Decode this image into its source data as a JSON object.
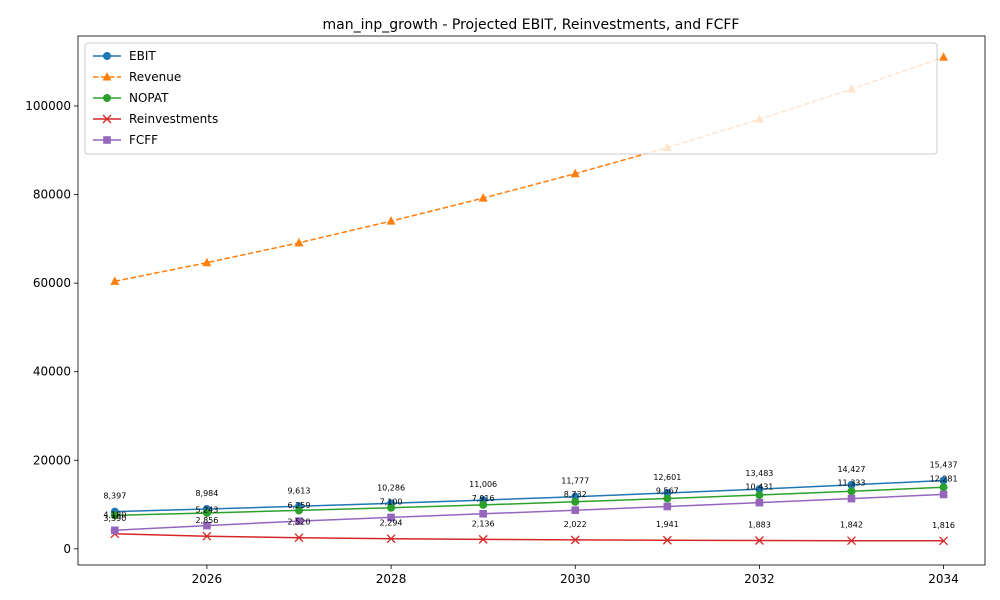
{
  "chart_data": {
    "type": "line",
    "title": "man_inp_growth - Projected EBIT, Reinvestments, and FCFF",
    "xlabel": "",
    "ylabel": "",
    "x": [
      2025,
      2026,
      2027,
      2028,
      2029,
      2030,
      2031,
      2032,
      2033,
      2034
    ],
    "xticks": [
      2026,
      2028,
      2030,
      2032,
      2034
    ],
    "xlim": [
      2024.6,
      2034.45
    ],
    "yticks": [
      0,
      20000,
      40000,
      60000,
      80000,
      100000
    ],
    "ylim": [
      -3650,
      115800
    ],
    "grid": false,
    "legend": "upper left",
    "series": [
      {
        "name": "EBIT",
        "color": "#1f77b4",
        "marker": "circle",
        "dashed": false,
        "label_points": true,
        "values": [
          8397,
          8984,
          9613,
          10286,
          11006,
          11777,
          12601,
          13483,
          14427,
          15437
        ],
        "labels": [
          "8,397",
          "8,984",
          "9,613",
          "10,286",
          "11,006",
          "11,777",
          "12,601",
          "13,483",
          "14,427",
          "15,437"
        ]
      },
      {
        "name": "Revenue",
        "color": "#ff7f0e",
        "marker": "triangle",
        "dashed": true,
        "label_points": false,
        "values": [
          60400,
          64600,
          69100,
          74000,
          79200,
          84700,
          90600,
          97000,
          103800,
          111000
        ],
        "labels": []
      },
      {
        "name": "NOPAT",
        "color": "#2ca02c",
        "marker": "circle",
        "dashed": false,
        "label_points": false,
        "values": [
          7570,
          8100,
          8670,
          9270,
          9920,
          10620,
          11360,
          12150,
          13000,
          13910
        ],
        "labels": []
      },
      {
        "name": "Reinvestments",
        "color": "#d62728",
        "marker": "x",
        "dashed": false,
        "label_points": true,
        "values": [
          3390,
          2856,
          2520,
          2294,
          2136,
          2022,
          1941,
          1883,
          1842,
          1816
        ],
        "labels": [
          "3,390",
          "2,856",
          "2,520",
          "2,294",
          "2,136",
          "2,022",
          "1,941",
          "1,883",
          "1,842",
          "1,816"
        ]
      },
      {
        "name": "FCFF",
        "color": "#9467bd",
        "marker": "square",
        "dashed": false,
        "label_points": true,
        "values": [
          4180,
          5243,
          6259,
          7100,
          7916,
          8732,
          9567,
          10431,
          11333,
          12281
        ],
        "labels": [
          "4,180",
          "5,243",
          "6,259",
          "7,100",
          "7,916",
          "8,732",
          "9,567",
          "10,431",
          "11,333",
          "12,281"
        ]
      }
    ]
  }
}
